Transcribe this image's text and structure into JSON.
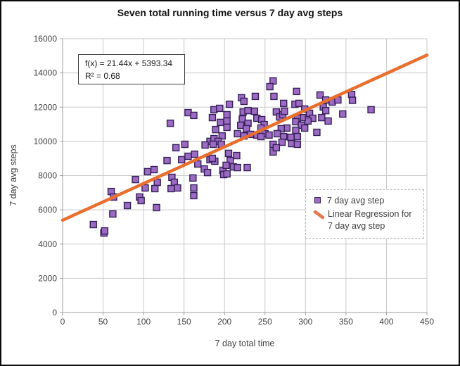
{
  "chart": {
    "title": "Seven total running time versus 7 day avg steps",
    "equation_line1": "f(x) = 21.44x + 5393.34",
    "equation_line2": "R² = 0.68",
    "xlabel": "7 day total time",
    "ylabel": "7 day avg steps",
    "legend_scatter_label": "7 day avg step",
    "legend_line_label": "Linear Regression for 7 day avg step"
  },
  "colors": {
    "marker_fill": "#9d6ac4",
    "marker_stroke": "#342058",
    "regression_line": "#e96f2e",
    "legend_line_icon": "#e9764f",
    "gridline": "#c9c9c9",
    "axis_line": "#9e9e9e",
    "tick_text": "#3f3f3f",
    "title_text": "#111111"
  },
  "chart_data": {
    "type": "scatter",
    "title": "Seven total running time versus 7 day avg steps",
    "xlabel": "7 day total time",
    "ylabel": "7 day avg steps",
    "xlim": [
      0,
      450
    ],
    "ylim": [
      0,
      16000
    ],
    "xticks": [
      0,
      50,
      100,
      150,
      200,
      250,
      300,
      350,
      400,
      450
    ],
    "yticks": [
      0,
      2000,
      4000,
      6000,
      8000,
      10000,
      12000,
      14000,
      16000
    ],
    "grid": true,
    "legend_position": "inside-right",
    "annotation": {
      "equation": "f(x) = 21.44x + 5393.34",
      "r_squared": "R² = 0.68"
    },
    "series": [
      {
        "name": "7 day avg step",
        "type": "scatter",
        "marker": "square",
        "color": "#9d6ac4",
        "points": [
          [
            38,
            5140
          ],
          [
            51,
            4650
          ],
          [
            52,
            4770
          ],
          [
            62,
            5760
          ],
          [
            60,
            7070
          ],
          [
            63,
            6750
          ],
          [
            80,
            6250
          ],
          [
            90,
            7770
          ],
          [
            95,
            6750
          ],
          [
            97,
            6540
          ],
          [
            102,
            7280
          ],
          [
            105,
            8230
          ],
          [
            113,
            8350
          ],
          [
            117,
            7610
          ],
          [
            114,
            7240
          ],
          [
            116,
            6130
          ],
          [
            129,
            8880
          ],
          [
            135,
            7900
          ],
          [
            138,
            7610
          ],
          [
            134,
            7240
          ],
          [
            142,
            7280
          ],
          [
            147,
            8930
          ],
          [
            155,
            9130
          ],
          [
            163,
            9250
          ],
          [
            167,
            8680
          ],
          [
            175,
            8390
          ],
          [
            179,
            8180
          ],
          [
            161,
            7860
          ],
          [
            162,
            7280
          ],
          [
            162,
            6830
          ],
          [
            182,
            8930
          ],
          [
            188,
            8840
          ],
          [
            185,
            9010
          ],
          [
            198,
            8310
          ],
          [
            199,
            8060
          ],
          [
            203,
            8100
          ],
          [
            205,
            9300
          ],
          [
            215,
            9170
          ],
          [
            207,
            8880
          ],
          [
            202,
            8600
          ],
          [
            211,
            8510
          ],
          [
            216,
            8470
          ],
          [
            228,
            8470
          ],
          [
            260,
            9380
          ],
          [
            133,
            11060
          ],
          [
            155,
            11680
          ],
          [
            162,
            11520
          ],
          [
            187,
            11850
          ],
          [
            194,
            11930
          ],
          [
            185,
            11390
          ],
          [
            195,
            11110
          ],
          [
            189,
            10690
          ],
          [
            197,
            10320
          ],
          [
            182,
            10000
          ],
          [
            187,
            10160
          ],
          [
            192,
            10000
          ],
          [
            186,
            9830
          ],
          [
            176,
            9790
          ],
          [
            140,
            9630
          ],
          [
            151,
            9830
          ],
          [
            196,
            9830
          ],
          [
            260,
            13530
          ],
          [
            256,
            13200
          ],
          [
            289,
            12920
          ],
          [
            206,
            12170
          ],
          [
            221,
            12550
          ],
          [
            224,
            12340
          ],
          [
            238,
            12630
          ],
          [
            261,
            12630
          ],
          [
            273,
            12220
          ],
          [
            203,
            11560
          ],
          [
            223,
            11720
          ],
          [
            229,
            11800
          ],
          [
            237,
            11760
          ],
          [
            240,
            11350
          ],
          [
            222,
            11310
          ],
          [
            229,
            11060
          ],
          [
            220,
            10940
          ],
          [
            227,
            10740
          ],
          [
            203,
            11190
          ],
          [
            203,
            10820
          ],
          [
            216,
            10450
          ],
          [
            224,
            10320
          ],
          [
            232,
            10410
          ],
          [
            240,
            10370
          ],
          [
            246,
            11270
          ],
          [
            249,
            10980
          ],
          [
            245,
            10780
          ],
          [
            250,
            10450
          ],
          [
            245,
            10280
          ],
          [
            255,
            10370
          ],
          [
            264,
            11720
          ],
          [
            268,
            11430
          ],
          [
            272,
            11560
          ],
          [
            274,
            11760
          ],
          [
            287,
            12170
          ],
          [
            292,
            12220
          ],
          [
            299,
            11890
          ],
          [
            305,
            11640
          ],
          [
            309,
            11350
          ],
          [
            303,
            11190
          ],
          [
            296,
            11390
          ],
          [
            290,
            11350
          ],
          [
            288,
            11150
          ],
          [
            295,
            10940
          ],
          [
            299,
            10780
          ],
          [
            288,
            10650
          ],
          [
            277,
            10780
          ],
          [
            270,
            10740
          ],
          [
            265,
            10450
          ],
          [
            273,
            10280
          ],
          [
            282,
            10240
          ],
          [
            290,
            10280
          ],
          [
            271,
            9950
          ],
          [
            283,
            9870
          ],
          [
            290,
            9830
          ],
          [
            260,
            9830
          ],
          [
            264,
            9630
          ],
          [
            318,
            12710
          ],
          [
            325,
            12420
          ],
          [
            333,
            12300
          ],
          [
            340,
            12420
          ],
          [
            322,
            12010
          ],
          [
            325,
            11800
          ],
          [
            320,
            11390
          ],
          [
            328,
            11190
          ],
          [
            357,
            12740
          ],
          [
            358,
            12400
          ],
          [
            346,
            11600
          ],
          [
            381,
            11850
          ],
          [
            314,
            10530
          ]
        ]
      },
      {
        "name": "Linear Regression for 7 day avg step",
        "type": "line",
        "color": "#e96f2e",
        "slope": 21.44,
        "intercept": 5393.34,
        "x_range": [
          0,
          450
        ]
      }
    ]
  }
}
